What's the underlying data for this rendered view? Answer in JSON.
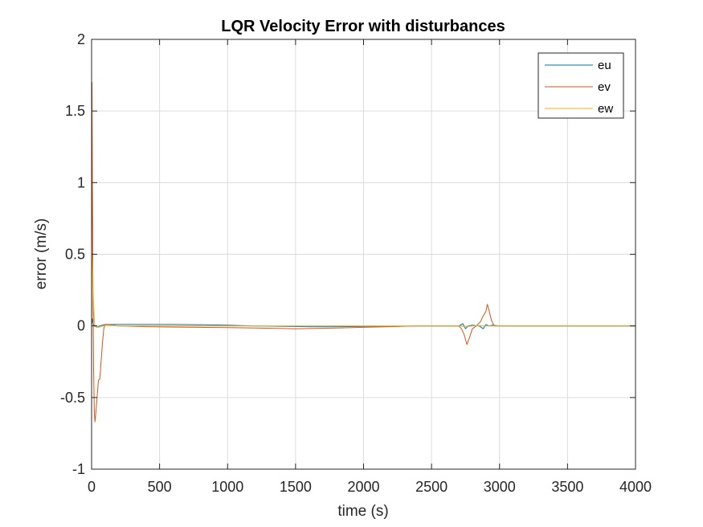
{
  "chart_data": {
    "type": "line",
    "title": "LQR Velocity Error with disturbances",
    "xlabel": "time (s)",
    "ylabel": "error (m/s)",
    "xlim": [
      0,
      4000
    ],
    "ylim": [
      -1,
      2
    ],
    "xticks": [
      0,
      500,
      1000,
      1500,
      2000,
      2500,
      3000,
      3500,
      4000
    ],
    "xtick_labels": [
      "0",
      "500",
      "1000",
      "1500",
      "2000",
      "2500",
      "3000",
      "3500",
      "4000"
    ],
    "yticks": [
      -1,
      -0.5,
      0,
      0.5,
      1,
      1.5,
      2
    ],
    "ytick_labels": [
      "-1",
      "-0.5",
      "0",
      "0.5",
      "1",
      "1.5",
      "2"
    ],
    "grid": true,
    "legend_position": "top-right",
    "series": [
      {
        "name": "eu",
        "color": "#0072BD",
        "x": [
          0,
          5,
          10,
          20,
          40,
          60,
          100,
          200,
          400,
          600,
          800,
          1000,
          1200,
          1400,
          1600,
          1800,
          2000,
          2200,
          2400,
          2600,
          2700,
          2730,
          2750,
          2770,
          2800,
          2850,
          2880,
          2900,
          2920,
          2950,
          3000,
          3500,
          4000
        ],
        "y": [
          0,
          0.05,
          0.02,
          0.0,
          -0.01,
          0.0,
          0.01,
          0.01,
          0.01,
          0.01,
          0.008,
          0.005,
          0.0,
          -0.003,
          -0.005,
          -0.005,
          -0.004,
          -0.003,
          0.0,
          0.0,
          0.0,
          0.015,
          -0.02,
          0.0,
          0.005,
          0.0,
          -0.02,
          0.01,
          0.0,
          0.005,
          0.0,
          0.0,
          0.0
        ]
      },
      {
        "name": "ev",
        "color": "#D95319",
        "x": [
          0,
          3,
          6,
          10,
          15,
          20,
          25,
          30,
          40,
          50,
          60,
          70,
          80,
          90,
          100,
          120,
          150,
          200,
          400,
          600,
          800,
          1000,
          1200,
          1400,
          1500,
          1600,
          1800,
          2000,
          2200,
          2400,
          2600,
          2700,
          2720,
          2740,
          2760,
          2780,
          2800,
          2830,
          2860,
          2880,
          2900,
          2910,
          2920,
          2940,
          2960,
          2980,
          3000,
          3500,
          4000
        ],
        "y": [
          0,
          1.7,
          1.0,
          0.3,
          -0.3,
          -0.6,
          -0.67,
          -0.62,
          -0.5,
          -0.38,
          -0.37,
          -0.25,
          -0.12,
          -0.02,
          0.01,
          0.01,
          0.005,
          0.0,
          -0.005,
          -0.008,
          -0.01,
          -0.012,
          -0.015,
          -0.018,
          -0.02,
          -0.018,
          -0.015,
          -0.01,
          -0.005,
          0.0,
          0.0,
          0.0,
          -0.02,
          -0.06,
          -0.13,
          -0.08,
          -0.02,
          0.0,
          0.03,
          0.07,
          0.1,
          0.15,
          0.12,
          0.04,
          0.0,
          0.0,
          0.0,
          0.0,
          0.0
        ]
      },
      {
        "name": "ew",
        "color": "#EDB120",
        "x": [
          0,
          3,
          5,
          8,
          12,
          16,
          20,
          25,
          35,
          50,
          70,
          100,
          150,
          200,
          400,
          600,
          800,
          1000,
          1500,
          2000,
          2500,
          2700,
          2750,
          2800,
          2850,
          2900,
          3000,
          3500,
          4000
        ],
        "y": [
          0,
          0.48,
          0.46,
          0.38,
          0.25,
          0.12,
          0.04,
          0.0,
          -0.01,
          -0.01,
          -0.005,
          0.005,
          0.003,
          0.0,
          0.0,
          0.0,
          0.0,
          0.0,
          0.0,
          0.0,
          0.0,
          0.0,
          -0.005,
          0.0,
          0.002,
          0.0,
          0.0,
          0.0,
          0.0
        ]
      }
    ]
  }
}
